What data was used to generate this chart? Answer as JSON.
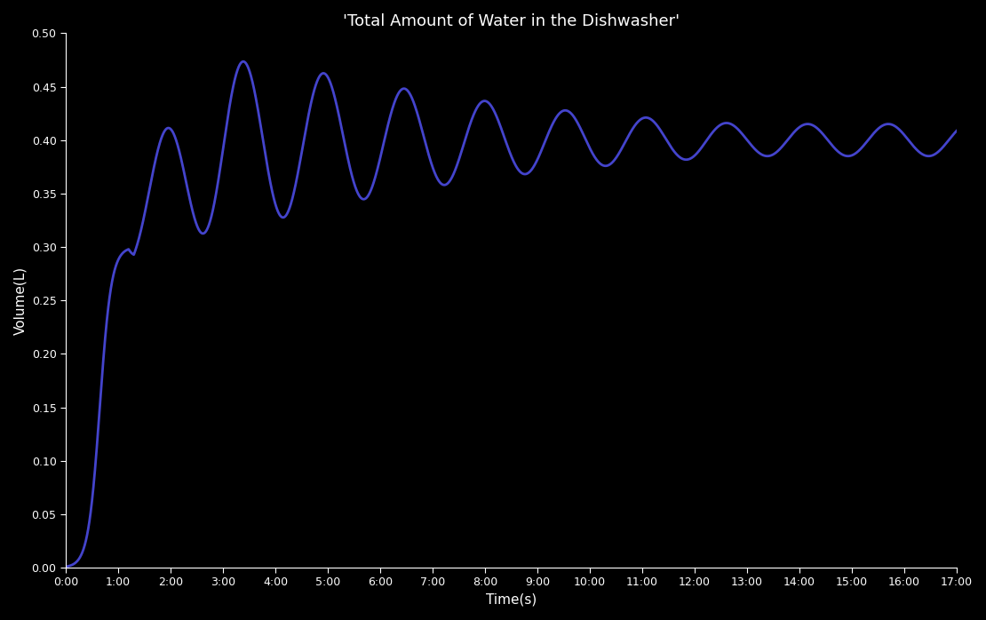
{
  "title": "'Total Amount of Water in the Dishwasher'",
  "xlabel": "Time(s)",
  "ylabel": "Volume(L)",
  "background_color": "#000000",
  "line_color": "#4444cc",
  "line_width": 2.0,
  "xlim": [
    0,
    17
  ],
  "ylim": [
    0.0,
    0.5
  ],
  "x_ticks": [
    0,
    1,
    2,
    3,
    4,
    5,
    6,
    7,
    8,
    9,
    10,
    11,
    12,
    13,
    14,
    15,
    16,
    17
  ],
  "x_tick_labels": [
    "0:00",
    "1:00",
    "2:00",
    "3:00",
    "4:00",
    "5:00",
    "6:00",
    "7:00",
    "8:00",
    "9:00",
    "10:00",
    "11:00",
    "12:00",
    "13:00",
    "14:00",
    "15:00",
    "16:00",
    "17:00"
  ],
  "y_ticks": [
    0.0,
    0.05,
    0.1,
    0.15,
    0.2,
    0.25,
    0.3,
    0.35,
    0.4,
    0.45,
    0.5
  ],
  "title_fontsize": 13,
  "axis_fontsize": 11,
  "tick_fontsize": 9
}
